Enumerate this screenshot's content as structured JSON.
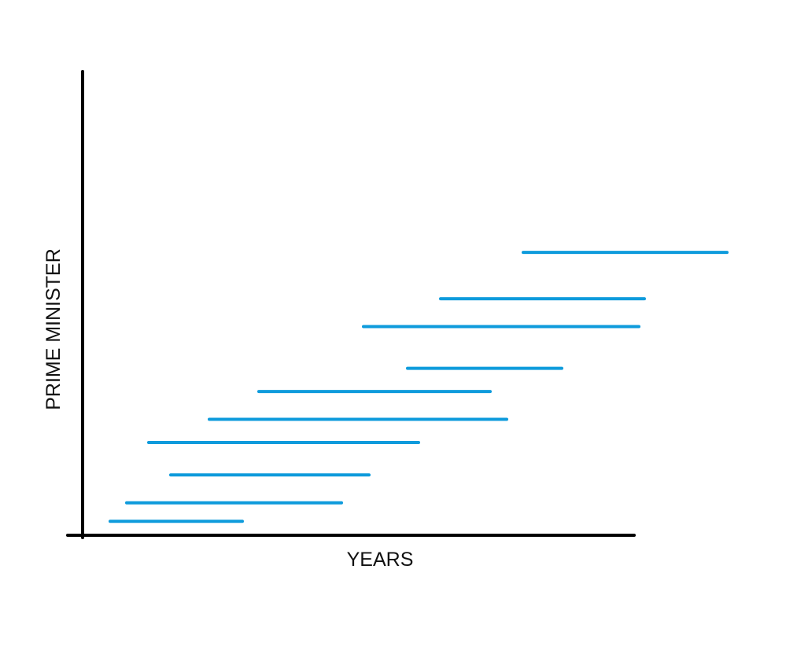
{
  "chart_data": {
    "type": "gantt",
    "xlabel": "YEARS",
    "ylabel": "PRIME MINISTER",
    "ticks_shown": false,
    "grid": false,
    "legend": "none",
    "xlim": [
      0,
      100
    ],
    "ylim": [
      0,
      100
    ],
    "line_color": "#0E9BDC",
    "axis_color": "#000000",
    "series": [
      {
        "y": 3,
        "x_start": 5,
        "x_end": 29
      },
      {
        "y": 7,
        "x_start": 8,
        "x_end": 47
      },
      {
        "y": 13,
        "x_start": 16,
        "x_end": 52
      },
      {
        "y": 20,
        "x_start": 12,
        "x_end": 61
      },
      {
        "y": 25,
        "x_start": 23,
        "x_end": 77
      },
      {
        "y": 31,
        "x_start": 32,
        "x_end": 74
      },
      {
        "y": 36,
        "x_start": 59,
        "x_end": 87
      },
      {
        "y": 45,
        "x_start": 51,
        "x_end": 101
      },
      {
        "y": 51,
        "x_start": 65,
        "x_end": 102
      },
      {
        "y": 61,
        "x_start": 80,
        "x_end": 117
      }
    ]
  }
}
